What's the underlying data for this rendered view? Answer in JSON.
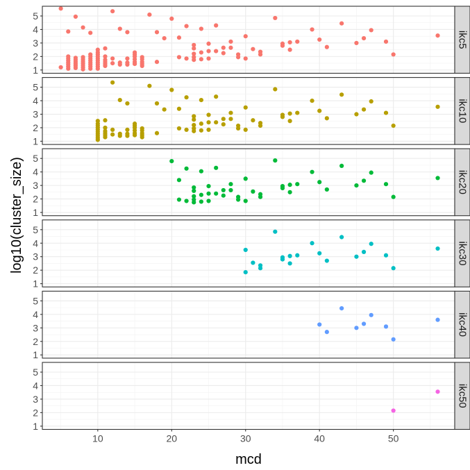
{
  "chart_data": {
    "type": "scatter",
    "xlabel": "mcd",
    "ylabel": "log10(cluster_size)",
    "xlim": [
      2.5,
      58.3
    ],
    "ylim": [
      0.76,
      5.72
    ],
    "x_ticks": [
      10,
      20,
      30,
      40,
      50
    ],
    "y_ticks": [
      1,
      2,
      3,
      4,
      5
    ],
    "grid": true,
    "facet_strip_position": "right",
    "colors": {
      "ikc5": "#F8766D",
      "ikc10": "#B79F00",
      "ikc20": "#00BA38",
      "ikc30": "#00BFC4",
      "ikc40": "#619CFF",
      "ikc50": "#F564E3"
    },
    "panels": [
      {
        "name": "ikc5",
        "points": [
          [
            5,
            5.55
          ],
          [
            5,
            1.2
          ],
          [
            6,
            3.85
          ],
          [
            6,
            2.0
          ],
          [
            6,
            1.85
          ],
          [
            6,
            1.7
          ],
          [
            6,
            1.55
          ],
          [
            6,
            1.4
          ],
          [
            6,
            1.25
          ],
          [
            6,
            1.1
          ],
          [
            7,
            4.95
          ],
          [
            7,
            1.9
          ],
          [
            7,
            1.75
          ],
          [
            7,
            1.6
          ],
          [
            7,
            1.45
          ],
          [
            7,
            1.3
          ],
          [
            7,
            1.15
          ],
          [
            8,
            4.15
          ],
          [
            8,
            1.95
          ],
          [
            8,
            1.8
          ],
          [
            8,
            1.65
          ],
          [
            8,
            1.5
          ],
          [
            8,
            1.35
          ],
          [
            8,
            1.2
          ],
          [
            8,
            1.05
          ],
          [
            9,
            3.75
          ],
          [
            9,
            2.15
          ],
          [
            9,
            2.0
          ],
          [
            9,
            1.85
          ],
          [
            9,
            1.7
          ],
          [
            9,
            1.55
          ],
          [
            9,
            1.4
          ],
          [
            9,
            1.25
          ],
          [
            9,
            1.1
          ],
          [
            10,
            2.5
          ],
          [
            10,
            2.3
          ],
          [
            10,
            2.15
          ],
          [
            10,
            2.0
          ],
          [
            10,
            1.85
          ],
          [
            10,
            1.7
          ],
          [
            10,
            1.55
          ],
          [
            10,
            1.4
          ],
          [
            10,
            1.25
          ],
          [
            10,
            1.1
          ],
          [
            11,
            2.6
          ],
          [
            11,
            2.0
          ],
          [
            11,
            1.75
          ],
          [
            11,
            1.6
          ],
          [
            11,
            1.45
          ],
          [
            11,
            1.3
          ],
          [
            12,
            5.35
          ],
          [
            12,
            1.85
          ],
          [
            12,
            1.5
          ],
          [
            13,
            4.05
          ],
          [
            13,
            1.55
          ],
          [
            13,
            1.4
          ],
          [
            14,
            3.8
          ],
          [
            14,
            1.85
          ],
          [
            14,
            1.55
          ],
          [
            14,
            1.4
          ],
          [
            15,
            2.3
          ],
          [
            15,
            2.15
          ],
          [
            15,
            2.0
          ],
          [
            15,
            1.8
          ],
          [
            15,
            1.6
          ],
          [
            15,
            1.45
          ],
          [
            16,
            1.95
          ],
          [
            16,
            1.8
          ],
          [
            16,
            1.6
          ],
          [
            16,
            1.45
          ],
          [
            16,
            1.3
          ],
          [
            17,
            5.1
          ],
          [
            18,
            3.8
          ],
          [
            18,
            1.6
          ],
          [
            19,
            3.35
          ],
          [
            20,
            4.8
          ],
          [
            21,
            1.95
          ],
          [
            21,
            3.4
          ],
          [
            22,
            4.25
          ],
          [
            22,
            1.85
          ],
          [
            23,
            2.85
          ],
          [
            23,
            2.6
          ],
          [
            23,
            2.2
          ],
          [
            23,
            1.95
          ],
          [
            23,
            1.75
          ],
          [
            24,
            4.05
          ],
          [
            24,
            2.3
          ],
          [
            24,
            1.8
          ],
          [
            25,
            2.95
          ],
          [
            25,
            2.4
          ],
          [
            25,
            1.85
          ],
          [
            26,
            4.3
          ],
          [
            26,
            2.4
          ],
          [
            27,
            2.65
          ],
          [
            27,
            2.25
          ],
          [
            28,
            3.1
          ],
          [
            28,
            2.65
          ],
          [
            29,
            2.15
          ],
          [
            29,
            1.95
          ],
          [
            30,
            3.5
          ],
          [
            30,
            1.85
          ],
          [
            31,
            2.55
          ],
          [
            32,
            2.35
          ],
          [
            32,
            2.15
          ],
          [
            34,
            4.85
          ],
          [
            35,
            2.95
          ],
          [
            35,
            2.8
          ],
          [
            36,
            3.05
          ],
          [
            36,
            2.5
          ],
          [
            37,
            3.1
          ],
          [
            39,
            4.0
          ],
          [
            40,
            3.25
          ],
          [
            41,
            2.7
          ],
          [
            43,
            4.45
          ],
          [
            45,
            3.0
          ],
          [
            46,
            3.35
          ],
          [
            47,
            3.95
          ],
          [
            49,
            3.1
          ],
          [
            50,
            2.15
          ],
          [
            56,
            3.55
          ]
        ]
      },
      {
        "name": "ikc10",
        "points": [
          [
            10,
            2.5
          ],
          [
            10,
            2.3
          ],
          [
            10,
            2.15
          ],
          [
            10,
            2.0
          ],
          [
            10,
            1.85
          ],
          [
            10,
            1.7
          ],
          [
            10,
            1.55
          ],
          [
            10,
            1.4
          ],
          [
            10,
            1.25
          ],
          [
            10,
            1.1
          ],
          [
            11,
            2.55
          ],
          [
            11,
            2.0
          ],
          [
            11,
            1.75
          ],
          [
            11,
            1.6
          ],
          [
            11,
            1.45
          ],
          [
            11,
            1.3
          ],
          [
            12,
            5.35
          ],
          [
            12,
            1.85
          ],
          [
            12,
            1.5
          ],
          [
            13,
            4.05
          ],
          [
            13,
            1.55
          ],
          [
            13,
            1.4
          ],
          [
            14,
            3.8
          ],
          [
            14,
            1.85
          ],
          [
            14,
            1.55
          ],
          [
            14,
            1.4
          ],
          [
            15,
            2.3
          ],
          [
            15,
            2.15
          ],
          [
            15,
            2.0
          ],
          [
            15,
            1.8
          ],
          [
            15,
            1.6
          ],
          [
            15,
            1.45
          ],
          [
            16,
            1.95
          ],
          [
            16,
            1.8
          ],
          [
            16,
            1.6
          ],
          [
            16,
            1.45
          ],
          [
            16,
            1.3
          ],
          [
            17,
            5.1
          ],
          [
            18,
            3.8
          ],
          [
            18,
            1.6
          ],
          [
            19,
            3.35
          ],
          [
            20,
            4.8
          ],
          [
            21,
            1.95
          ],
          [
            21,
            3.4
          ],
          [
            22,
            4.25
          ],
          [
            22,
            1.85
          ],
          [
            23,
            2.85
          ],
          [
            23,
            2.6
          ],
          [
            23,
            2.2
          ],
          [
            23,
            1.95
          ],
          [
            23,
            1.75
          ],
          [
            24,
            4.05
          ],
          [
            24,
            2.3
          ],
          [
            24,
            1.8
          ],
          [
            25,
            2.95
          ],
          [
            25,
            2.4
          ],
          [
            25,
            1.85
          ],
          [
            26,
            4.3
          ],
          [
            26,
            2.4
          ],
          [
            27,
            2.65
          ],
          [
            27,
            2.25
          ],
          [
            28,
            3.1
          ],
          [
            28,
            2.65
          ],
          [
            29,
            2.15
          ],
          [
            29,
            1.95
          ],
          [
            30,
            3.5
          ],
          [
            30,
            1.85
          ],
          [
            31,
            2.55
          ],
          [
            32,
            2.35
          ],
          [
            32,
            2.15
          ],
          [
            34,
            4.85
          ],
          [
            35,
            2.95
          ],
          [
            35,
            2.8
          ],
          [
            36,
            3.05
          ],
          [
            36,
            2.5
          ],
          [
            37,
            3.1
          ],
          [
            39,
            4.0
          ],
          [
            40,
            3.25
          ],
          [
            41,
            2.7
          ],
          [
            43,
            4.45
          ],
          [
            45,
            3.0
          ],
          [
            46,
            3.35
          ],
          [
            47,
            3.95
          ],
          [
            49,
            3.1
          ],
          [
            50,
            2.15
          ],
          [
            56,
            3.55
          ]
        ]
      },
      {
        "name": "ikc20",
        "points": [
          [
            20,
            4.8
          ],
          [
            21,
            1.95
          ],
          [
            21,
            3.4
          ],
          [
            22,
            4.25
          ],
          [
            22,
            1.85
          ],
          [
            23,
            2.85
          ],
          [
            23,
            2.6
          ],
          [
            23,
            2.2
          ],
          [
            23,
            1.95
          ],
          [
            23,
            1.75
          ],
          [
            24,
            4.05
          ],
          [
            24,
            2.3
          ],
          [
            24,
            1.8
          ],
          [
            25,
            2.95
          ],
          [
            25,
            2.4
          ],
          [
            25,
            1.85
          ],
          [
            26,
            4.3
          ],
          [
            26,
            2.4
          ],
          [
            27,
            2.65
          ],
          [
            27,
            2.25
          ],
          [
            28,
            3.1
          ],
          [
            28,
            2.65
          ],
          [
            29,
            2.15
          ],
          [
            29,
            1.95
          ],
          [
            30,
            3.5
          ],
          [
            30,
            1.85
          ],
          [
            31,
            2.55
          ],
          [
            32,
            2.35
          ],
          [
            32,
            2.15
          ],
          [
            34,
            4.85
          ],
          [
            35,
            2.95
          ],
          [
            35,
            2.8
          ],
          [
            36,
            3.05
          ],
          [
            36,
            2.5
          ],
          [
            37,
            3.1
          ],
          [
            39,
            4.0
          ],
          [
            40,
            3.25
          ],
          [
            41,
            2.7
          ],
          [
            43,
            4.45
          ],
          [
            45,
            3.0
          ],
          [
            46,
            3.35
          ],
          [
            47,
            3.95
          ],
          [
            49,
            3.1
          ],
          [
            50,
            2.15
          ],
          [
            56,
            3.55
          ]
        ]
      },
      {
        "name": "ikc30",
        "points": [
          [
            30,
            3.5
          ],
          [
            30,
            1.85
          ],
          [
            31,
            2.55
          ],
          [
            32,
            2.35
          ],
          [
            32,
            2.15
          ],
          [
            34,
            4.85
          ],
          [
            35,
            2.95
          ],
          [
            35,
            2.8
          ],
          [
            36,
            3.05
          ],
          [
            36,
            2.5
          ],
          [
            37,
            3.1
          ],
          [
            39,
            4.0
          ],
          [
            40,
            3.25
          ],
          [
            41,
            2.7
          ],
          [
            43,
            4.45
          ],
          [
            45,
            3.0
          ],
          [
            46,
            3.35
          ],
          [
            47,
            3.95
          ],
          [
            49,
            3.1
          ],
          [
            50,
            2.15
          ],
          [
            56,
            3.6
          ]
        ]
      },
      {
        "name": "ikc40",
        "points": [
          [
            40,
            3.25
          ],
          [
            41,
            2.7
          ],
          [
            43,
            4.45
          ],
          [
            45,
            3.0
          ],
          [
            46,
            3.3
          ],
          [
            47,
            3.95
          ],
          [
            49,
            3.1
          ],
          [
            50,
            2.15
          ],
          [
            56,
            3.6
          ]
        ]
      },
      {
        "name": "ikc50",
        "points": [
          [
            50,
            2.15
          ],
          [
            56,
            3.55
          ]
        ]
      }
    ]
  }
}
